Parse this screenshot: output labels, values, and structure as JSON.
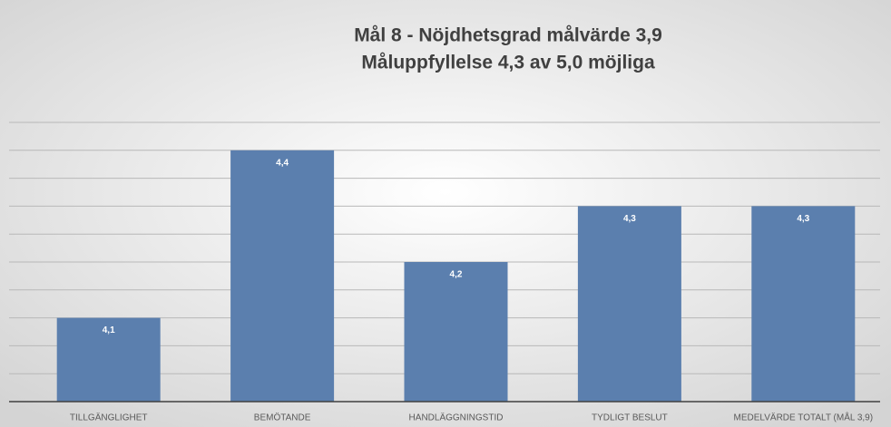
{
  "chart_data": {
    "type": "bar",
    "title": [
      "Mål 8 - Nöjdhetsgrad målvärde 3,9",
      "Måluppfyllelse 4,3 av 5,0 möjliga"
    ],
    "categories": [
      "TILLGÄNGLIGHET",
      "BEMÖTANDE",
      "HANDLÄGGNINGSTID",
      "TYDLIGT BESLUT",
      "MEDELVÄRDE TOTALT (MÅL 3,9)"
    ],
    "values": [
      4.1,
      4.4,
      4.2,
      4.3,
      4.3
    ],
    "value_labels": [
      "4,1",
      "4,4",
      "4,2",
      "4,3",
      "4,3"
    ],
    "color": "#5b7fae",
    "ylim": [
      3.95,
      4.45
    ],
    "yticks": [
      3.95,
      4.0,
      4.05,
      4.1,
      4.15,
      4.2,
      4.25,
      4.3,
      4.35,
      4.4,
      4.45
    ],
    "grid": true
  }
}
